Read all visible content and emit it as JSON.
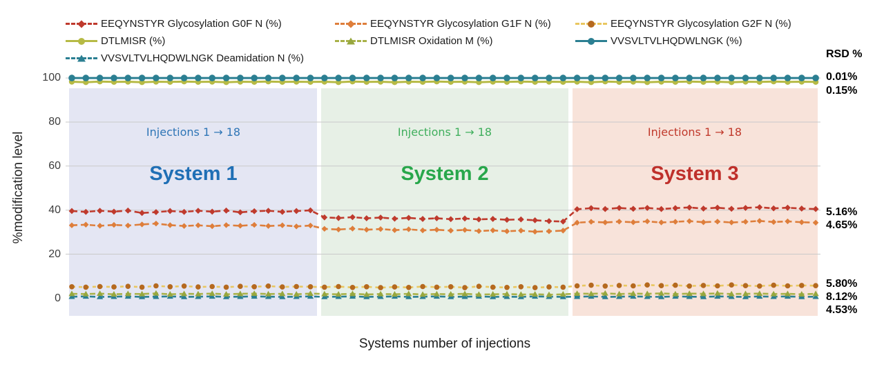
{
  "figure": {
    "x_title": "Systems number of injections",
    "y_title": "%modification level"
  },
  "axes": {
    "y_ticks": [
      "100",
      "80",
      "60",
      "40",
      "20",
      "0"
    ]
  },
  "rsd": {
    "title": "RSD %",
    "values": [
      "0.01%",
      "0.15%",
      "5.16%",
      "4.65%",
      "5.80%",
      "8.12%",
      "4.53%"
    ]
  },
  "systems": [
    {
      "name": "System 1",
      "injections_label": "Injections 1 → 18",
      "name_color": "#1f6fb5",
      "label_color": "#2e75b6",
      "bg": "#e4e6f3"
    },
    {
      "name": "System 2",
      "injections_label": "Injections 1 → 18",
      "name_color": "#28a74b",
      "label_color": "#3fae5c",
      "bg": "#e7f0e6"
    },
    {
      "name": "System 3",
      "injections_label": "Injections 1 → 18",
      "name_color": "#bf302b",
      "label_color": "#c0392b",
      "bg": "#f8e3da"
    }
  ],
  "chart_data": {
    "type": "line",
    "title": "",
    "xlabel": "Systems number of injections",
    "ylabel": "%modification level",
    "ylim": [
      0,
      100
    ],
    "grid": "horizontal",
    "legend_position": "top",
    "x_axis": {
      "total_points": 54,
      "groups": [
        {
          "name": "System 1",
          "points": 18
        },
        {
          "name": "System 2",
          "points": 18
        },
        {
          "name": "System 3",
          "points": 18
        }
      ]
    },
    "series": [
      {
        "id": "g0f",
        "name": "EEQYNSTYR Glycosylation G0F N (%)",
        "color": "#bf3a2d",
        "line": "dashed",
        "marker": "diamond",
        "marker_size": 4.4,
        "rsd": "5.16%",
        "values": [
          39.6,
          39.2,
          39.7,
          39.3,
          39.8,
          38.7,
          39.1,
          39.6,
          39.2,
          39.7,
          39.3,
          39.8,
          39.0,
          39.5,
          39.7,
          39.2,
          39.6,
          39.9,
          36.7,
          36.4,
          36.8,
          36.3,
          36.6,
          36.1,
          36.5,
          36.0,
          36.3,
          35.9,
          36.2,
          35.8,
          36.0,
          35.6,
          35.8,
          35.4,
          35.0,
          34.8,
          40.4,
          40.9,
          40.5,
          41.0,
          40.6,
          41.0,
          40.5,
          40.9,
          41.2,
          40.7,
          41.1,
          40.6,
          41.0,
          41.3,
          40.8,
          41.1,
          40.7,
          40.5
        ]
      },
      {
        "id": "g1f",
        "name": "EEQYNSTYR Glycosylation G1F N (%)",
        "color": "#de7e3b",
        "line": "dashed",
        "marker": "diamond",
        "marker_size": 4.2,
        "rsd": "4.65%",
        "values": [
          33.1,
          33.4,
          32.9,
          33.3,
          33.0,
          33.5,
          33.9,
          33.2,
          32.8,
          33.1,
          32.7,
          33.2,
          32.9,
          33.3,
          32.8,
          33.1,
          32.6,
          33.0,
          31.5,
          31.2,
          31.6,
          31.1,
          31.4,
          30.9,
          31.3,
          30.8,
          31.1,
          30.7,
          31.0,
          30.5,
          30.8,
          30.4,
          30.7,
          30.2,
          30.4,
          30.7,
          34.3,
          34.7,
          34.4,
          34.8,
          34.5,
          34.9,
          34.4,
          34.7,
          35.0,
          34.5,
          34.8,
          34.4,
          34.7,
          35.1,
          34.6,
          34.9,
          34.5,
          34.3
        ]
      },
      {
        "id": "g2f",
        "name": "EEQYNSTYR Glycosylation G2F N (%)",
        "color": "#e9c75f",
        "line": "dashed",
        "dash": "5 5",
        "marker": "circle",
        "marker_color": "#b5691f",
        "marker_size": 3.8,
        "rsd": "5.80%",
        "values": [
          5.2,
          5.0,
          5.3,
          5.1,
          5.4,
          5.0,
          5.6,
          5.2,
          5.5,
          5.1,
          5.3,
          5.0,
          5.4,
          5.2,
          5.5,
          5.1,
          5.3,
          5.2,
          5.0,
          5.3,
          4.9,
          5.2,
          4.8,
          5.1,
          4.9,
          5.3,
          5.0,
          5.2,
          4.8,
          5.4,
          5.0,
          4.9,
          5.2,
          4.8,
          5.1,
          5.0,
          5.6,
          5.9,
          5.5,
          5.8,
          5.6,
          6.0,
          5.7,
          5.9,
          5.5,
          5.8,
          5.6,
          6.0,
          5.7,
          5.5,
          5.9,
          5.6,
          5.8,
          5.7
        ]
      },
      {
        "id": "dtlmisr",
        "name": "DTLMISR (%)",
        "color": "#b6ba45",
        "line": "solid",
        "width": 3,
        "marker": "circle",
        "marker_size": 4.2,
        "rsd": "0.15%",
        "values": [
          98.3,
          98.1,
          98.4,
          98.2,
          98.3,
          98.1,
          98.3,
          98.2,
          98.4,
          98.2,
          98.3,
          98.1,
          98.3,
          98.2,
          98.4,
          98.2,
          98.3,
          98.2,
          98.3,
          98.1,
          98.4,
          98.2,
          98.3,
          98.1,
          98.3,
          98.2,
          98.4,
          98.2,
          98.3,
          98.1,
          98.3,
          98.2,
          98.4,
          98.2,
          98.3,
          98.2,
          98.3,
          98.1,
          98.4,
          98.2,
          98.3,
          98.1,
          98.3,
          98.2,
          98.4,
          98.2,
          98.3,
          98.1,
          98.3,
          98.2,
          98.4,
          98.2,
          98.3,
          98.2
        ]
      },
      {
        "id": "dtlmisr-ox",
        "name": "DTLMISR Oxidation M (%)",
        "color": "#a8b148",
        "line": "dashed",
        "marker": "triangle",
        "marker_color": "#97a73f",
        "marker_size": 4.6,
        "rsd": "8.12%",
        "values": [
          2.0,
          1.9,
          2.1,
          1.8,
          2.0,
          1.9,
          2.2,
          1.8,
          2.0,
          1.9,
          2.1,
          1.8,
          2.0,
          2.1,
          1.9,
          2.0,
          1.8,
          2.1,
          1.9,
          1.8,
          2.0,
          1.7,
          1.9,
          1.8,
          2.0,
          1.7,
          1.9,
          1.8,
          2.0,
          1.7,
          1.8,
          1.9,
          1.7,
          1.8,
          1.6,
          1.8,
          2.1,
          2.0,
          2.2,
          1.9,
          2.1,
          2.0,
          2.2,
          1.9,
          2.1,
          2.0,
          2.2,
          1.9,
          2.0,
          2.1,
          1.9,
          2.0,
          1.8,
          2.0
        ]
      },
      {
        "id": "vvsv",
        "name": "VVSVLTVLHQDWLNGK (%)",
        "color": "#2b7f92",
        "line": "solid",
        "width": 3,
        "marker": "circle",
        "marker_size": 4.8,
        "rsd": "0.01%",
        "values": [
          100,
          100,
          100,
          100,
          100,
          100,
          100,
          100,
          100,
          100,
          100,
          100,
          100,
          100,
          100,
          100,
          100,
          100,
          100,
          100,
          100,
          100,
          100,
          100,
          100,
          100,
          100,
          100,
          100,
          100,
          100,
          100,
          100,
          100,
          100,
          100,
          100,
          100,
          100,
          100,
          100,
          100,
          100,
          100,
          100,
          100,
          100,
          100,
          100,
          100,
          100,
          100,
          100,
          100
        ]
      },
      {
        "id": "vvsv-deam",
        "name": "VVSVLTVLHQDWLNGK Deamidation N (%)",
        "color": "#2b7f92",
        "line": "dashed",
        "marker": "triangle",
        "marker_size": 4.6,
        "rsd": "4.53%",
        "values": [
          0.7,
          0.8,
          0.6,
          0.7,
          0.8,
          0.6,
          0.7,
          0.8,
          0.6,
          0.7,
          0.8,
          0.6,
          0.7,
          0.8,
          0.7,
          0.6,
          0.7,
          0.8,
          0.6,
          0.7,
          0.8,
          0.6,
          0.7,
          0.8,
          0.6,
          0.7,
          0.8,
          0.6,
          0.7,
          0.8,
          0.6,
          0.7,
          0.6,
          0.8,
          0.7,
          0.6,
          0.7,
          0.8,
          0.6,
          0.7,
          0.8,
          0.7,
          0.6,
          0.8,
          0.7,
          0.6,
          0.8,
          0.7,
          0.6,
          0.8,
          0.7,
          0.8,
          0.6,
          0.7
        ]
      }
    ]
  }
}
